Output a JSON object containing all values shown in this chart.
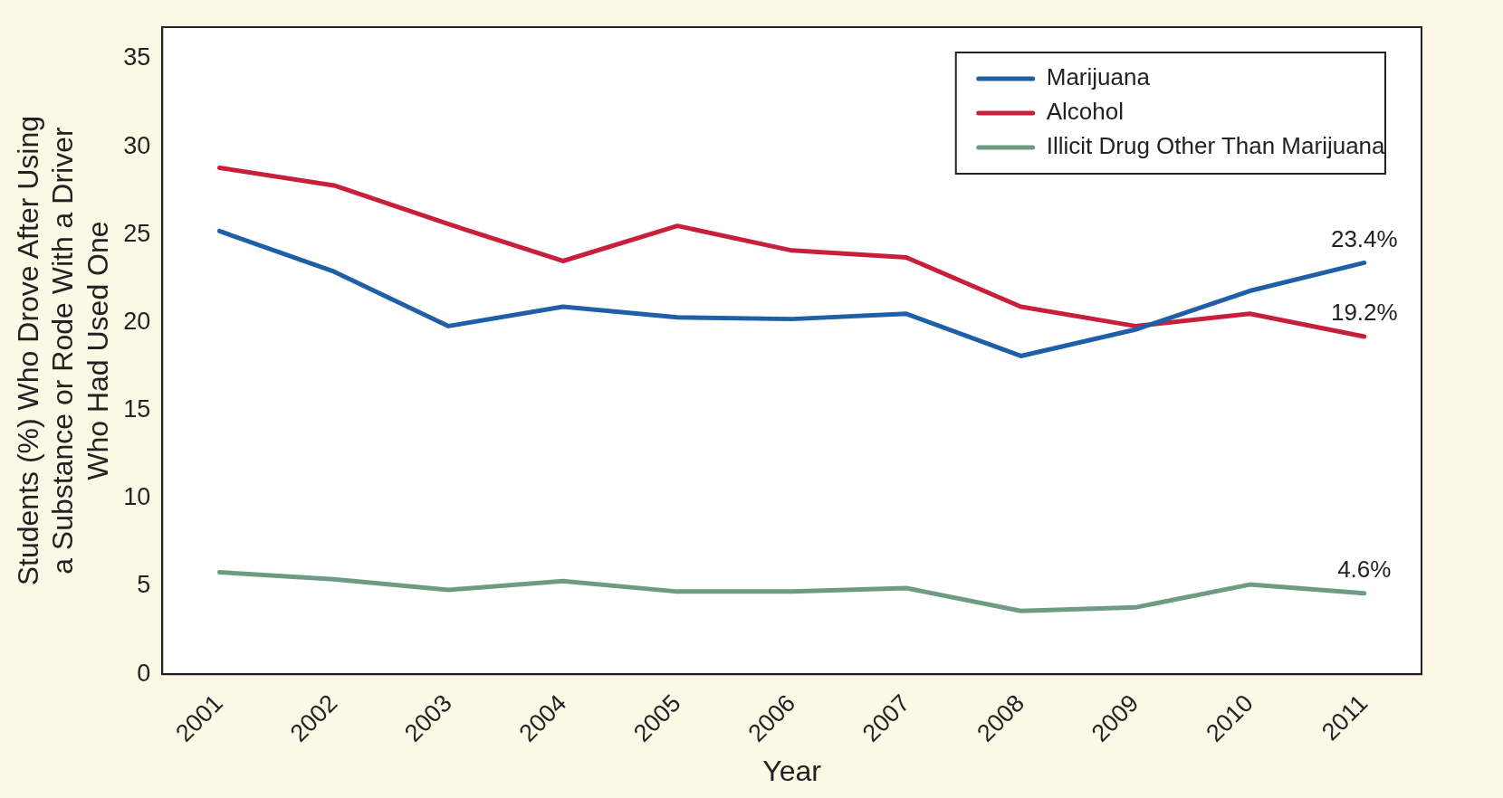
{
  "chart_data": {
    "type": "line",
    "xlabel": "Year",
    "ylabel": "Students (%) Who Drove After Using a Substance or Rode With a Driver Who Had Used One",
    "categories": [
      "2001",
      "2002",
      "2003",
      "2004",
      "2005",
      "2006",
      "2007",
      "2008",
      "2009",
      "2010",
      "2011"
    ],
    "series": [
      {
        "name": "Marijuana",
        "color": "#1f5fa8",
        "values": [
          25.2,
          22.9,
          19.8,
          20.9,
          20.3,
          20.2,
          20.5,
          18.1,
          19.6,
          21.8,
          23.4
        ]
      },
      {
        "name": "Alcohol",
        "color": "#c8203c",
        "values": [
          28.8,
          27.8,
          25.6,
          23.5,
          25.5,
          24.1,
          23.7,
          20.9,
          19.8,
          20.5,
          19.2
        ]
      },
      {
        "name": "Illicit Drug Other Than Marijuana",
        "color": "#6e9c82",
        "values": [
          5.8,
          5.4,
          4.8,
          5.3,
          4.7,
          4.7,
          4.9,
          3.6,
          3.8,
          5.1,
          4.6
        ]
      }
    ],
    "ylim": [
      0,
      36.8
    ],
    "yticks": [
      0,
      5,
      10,
      15,
      20,
      25,
      30,
      35
    ],
    "grid": false,
    "legend": "top right",
    "marker": "none",
    "line_style": "solid",
    "annotations": [
      {
        "text": "23.4%",
        "x": "2011",
        "y": 23.4
      },
      {
        "text": "19.2%",
        "x": "2011",
        "y": 19.2
      },
      {
        "text": "4.6%",
        "x": "2011",
        "y": 4.6
      }
    ]
  }
}
